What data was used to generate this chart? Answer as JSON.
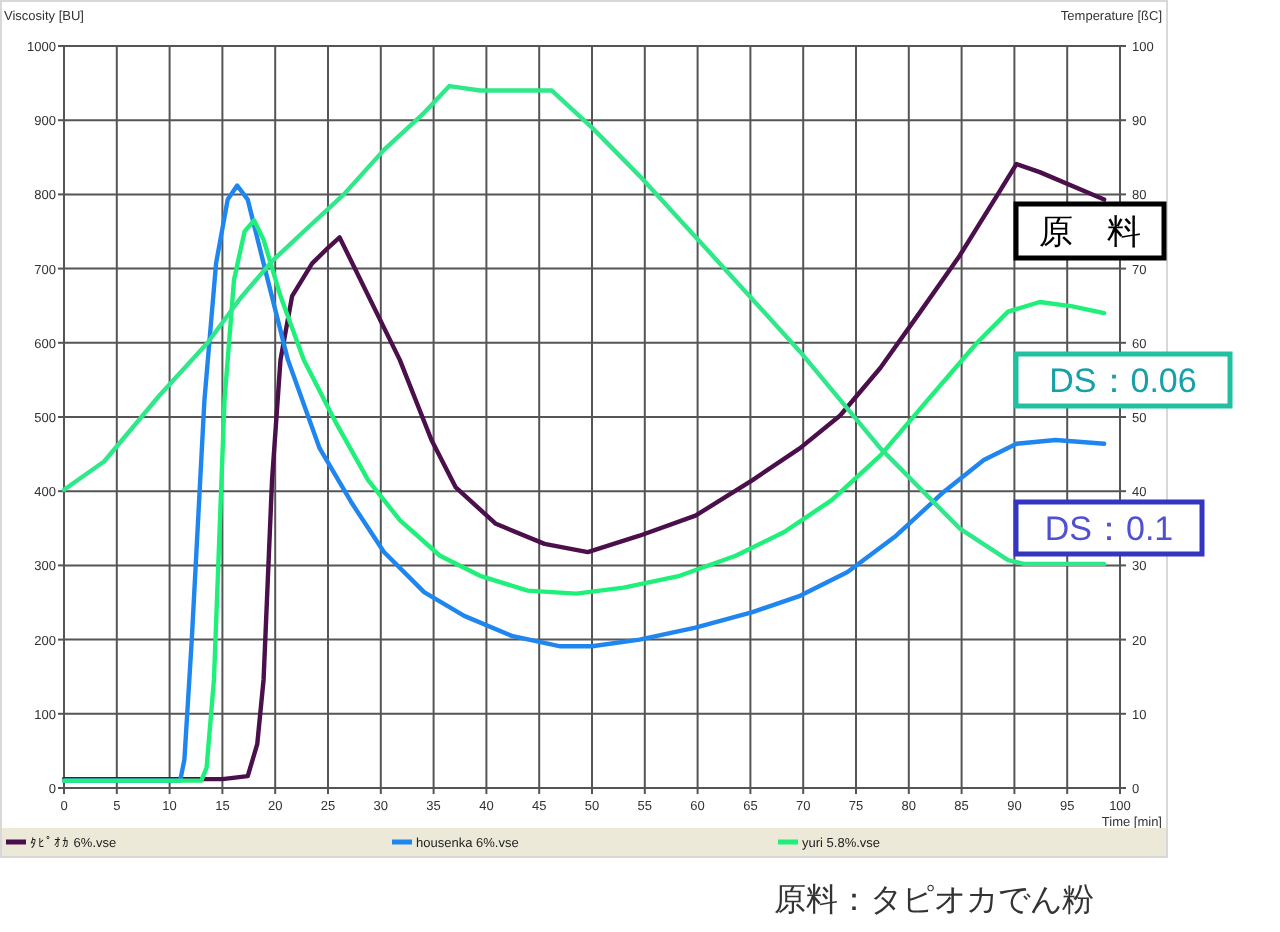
{
  "chart_data": {
    "type": "line",
    "xlabel": "Time [min]",
    "ylabel": "Viscosity [BU]",
    "y2label": "Temperature [ßC]",
    "xlim": [
      0,
      100
    ],
    "xticks": [
      0,
      5,
      10,
      15,
      20,
      25,
      30,
      35,
      40,
      45,
      50,
      55,
      60,
      65,
      70,
      75,
      80,
      85,
      90,
      95,
      100
    ],
    "ylim": [
      0,
      1000
    ],
    "yticks": [
      0,
      100,
      200,
      300,
      400,
      500,
      600,
      700,
      800,
      900,
      1000
    ],
    "y2lim": [
      0,
      100
    ],
    "y2ticks": [
      0,
      10,
      20,
      30,
      40,
      50,
      60,
      70,
      80,
      90,
      100
    ],
    "grid": true,
    "legend": "bottom",
    "marker": "none",
    "line_style": "solid",
    "series": [
      {
        "name": "ﾀﾋﾟｵｶ 6%.vse",
        "color": "#4b0f4b",
        "x": [
          0,
          5,
          10,
          15,
          17.4,
          18.3,
          18.9,
          19.7,
          20.5,
          21.6,
          23.5,
          25,
          26.1,
          31.8,
          34.8,
          37.1,
          40.9,
          45.5,
          49.6,
          54.5,
          59.8,
          65.2,
          69.7,
          73.5,
          77.3,
          81.1,
          84.8,
          88.6,
          90.2,
          92.4,
          98.5
        ],
        "values": [
          12,
          12,
          12,
          12,
          16,
          59,
          146,
          415,
          577,
          663,
          707,
          728,
          742,
          577,
          469,
          405,
          356,
          329,
          318,
          340,
          367,
          415,
          458,
          502,
          566,
          642,
          717,
          804,
          841,
          830,
          793
        ]
      },
      {
        "name": "housenka 6%.vse",
        "color": "#1f86f0",
        "x": [
          0,
          5,
          11,
          11.4,
          12.1,
          13.3,
          14.4,
          15.5,
          16.4,
          17.4,
          18.9,
          21.2,
          24.2,
          27.3,
          30.3,
          34.1,
          37.9,
          42.4,
          47,
          50,
          54.5,
          59.8,
          65.2,
          69.7,
          74.2,
          78.8,
          83.3,
          87.1,
          90.2,
          93.9,
          98.5
        ],
        "values": [
          10,
          10,
          10,
          38,
          200,
          523,
          707,
          793,
          812,
          793,
          707,
          577,
          458,
          383,
          318,
          264,
          232,
          205,
          191,
          191,
          200,
          216,
          237,
          259,
          291,
          340,
          399,
          442,
          464,
          469,
          464
        ]
      },
      {
        "name": "yuri 5.8%.vse",
        "color": "#1ef07a",
        "x": [
          0,
          5,
          10,
          13,
          13.5,
          14.2,
          15.2,
          16.1,
          17.1,
          18,
          18.9,
          20.5,
          22.7,
          25.8,
          28.8,
          31.8,
          35.6,
          39.4,
          43.9,
          48.5,
          53,
          58.3,
          63.6,
          68.2,
          72.7,
          77.3,
          81.8,
          86.4,
          89.4,
          92.4,
          95.5,
          98.5
        ],
        "values": [
          10,
          10,
          10,
          10,
          27,
          146,
          523,
          685,
          750,
          765,
          739,
          663,
          577,
          491,
          415,
          361,
          313,
          286,
          266,
          262,
          270,
          286,
          313,
          345,
          388,
          448,
          523,
          599,
          642,
          655,
          649,
          640
        ]
      },
      {
        "color": "#2ee88a",
        "axis": "y2",
        "x": [
          0,
          3.8,
          9.1,
          13.6,
          16.7,
          19.7,
          22.7,
          26.5,
          30.3,
          34.1,
          36.5,
          39.4,
          46.2,
          50,
          54.5,
          62.1,
          69.7,
          77.3,
          84.8,
          89.4,
          90.9,
          98.5
        ],
        "values": [
          40.2,
          44,
          53,
          60,
          66,
          71,
          75,
          80,
          86,
          91,
          94.6,
          94,
          94,
          89,
          82.5,
          70.7,
          58.8,
          45.8,
          35,
          30.7,
          30.2,
          30.2
        ]
      }
    ],
    "annotations": [
      "原　料",
      "DS：0.06",
      "DS：0.1",
      "原料：タピオカでん粉"
    ]
  }
}
